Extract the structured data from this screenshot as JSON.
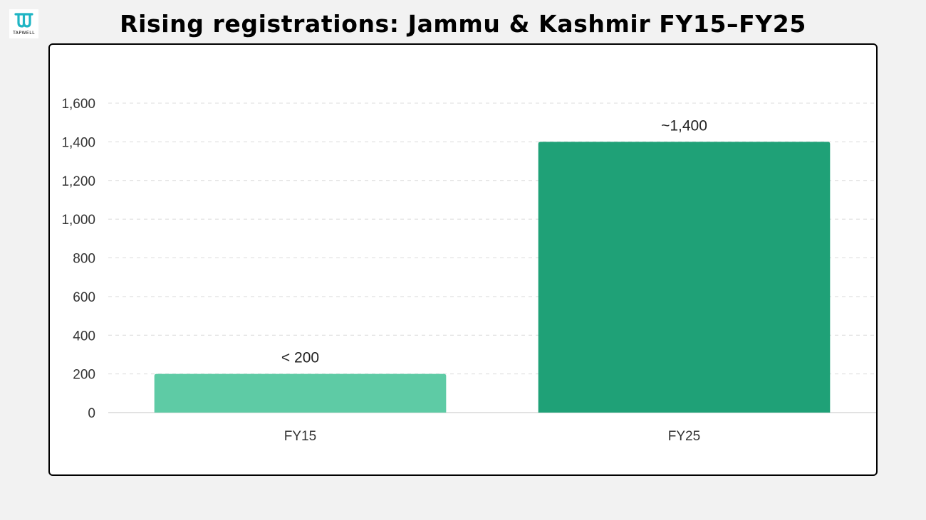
{
  "brand": {
    "logo_icon": "tapwell-logo-icon",
    "logo_text": "TAPWELL",
    "accent": "#1fb5c4"
  },
  "header": {
    "title": "Rising registrations: Jammu & Kashmir FY15–FY25"
  },
  "chart_data": {
    "type": "bar",
    "title": "",
    "xlabel": "",
    "ylabel": "",
    "categories": [
      "FY15",
      "FY25"
    ],
    "values": [
      200,
      1400
    ],
    "data_labels": [
      "< 200",
      "~1,400"
    ],
    "colors": [
      "#5ecba5",
      "#1fa177"
    ],
    "ylim": [
      0,
      1600
    ],
    "yticks": [
      0,
      200,
      400,
      600,
      800,
      1000,
      1200,
      1400,
      1600
    ],
    "ytick_labels": [
      "0",
      "200",
      "400",
      "600",
      "800",
      "1,000",
      "1,200",
      "1,400",
      "1,600"
    ],
    "grid": true,
    "legend": "none"
  }
}
